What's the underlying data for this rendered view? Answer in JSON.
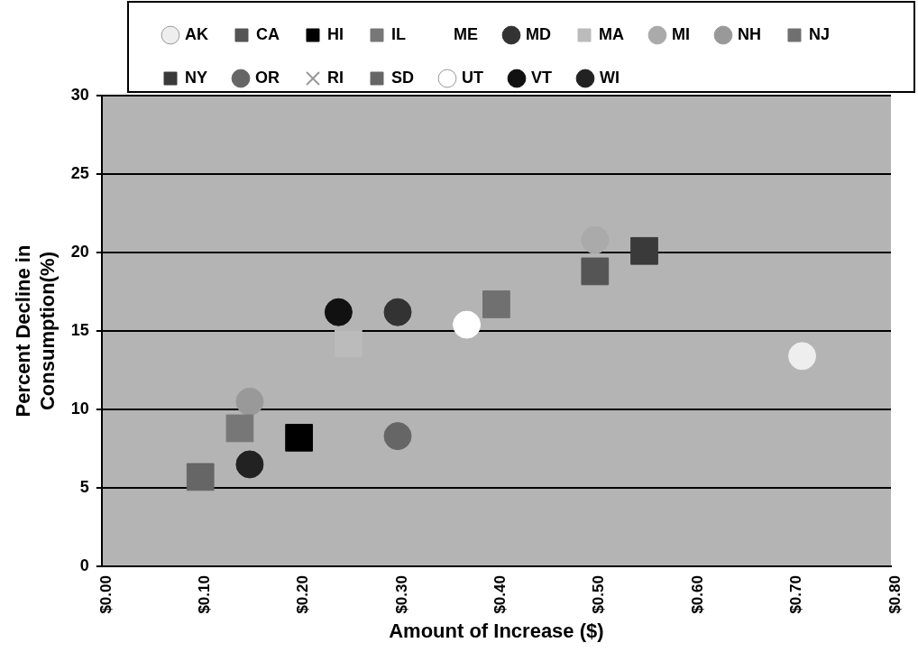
{
  "chart_data": {
    "type": "scatter",
    "xlabel": "Amount of Increase ($)",
    "ylabel": "Percent Decline in\nConsumption(%)",
    "xlim": [
      0,
      0.8
    ],
    "xticks": [
      {
        "value": 0,
        "label": "$0.00"
      },
      {
        "value": 0.1,
        "label": "$0.10"
      },
      {
        "value": 0.2,
        "label": "$0.20"
      },
      {
        "value": 0.3,
        "label": "$0.30"
      },
      {
        "value": 0.4,
        "label": "$0.40"
      },
      {
        "value": 0.5,
        "label": "$0.50"
      },
      {
        "value": 0.6,
        "label": "$0.60"
      },
      {
        "value": 0.7,
        "label": "$0.70"
      },
      {
        "value": 0.8,
        "label": "$0.80"
      }
    ],
    "ylim": [
      0,
      30
    ],
    "yticks": [
      0,
      5,
      10,
      15,
      20,
      25,
      30
    ],
    "grid": "y",
    "legend": "top",
    "marker": "circle",
    "series": [
      {
        "name": "AK",
        "color": "#eeeeee",
        "x": [
          0.71
        ],
        "values": [
          13.4
        ]
      },
      {
        "name": "CA",
        "color": "#555555",
        "marker": "square",
        "x": [
          0.5
        ],
        "values": [
          18.8
        ]
      },
      {
        "name": "HI",
        "color": "#000000",
        "marker": "square",
        "x": [
          0.2
        ],
        "values": [
          8.2
        ]
      },
      {
        "name": "IL",
        "color": "#777777",
        "marker": "square",
        "x": [
          0.14
        ],
        "values": [
          8.8
        ]
      },
      {
        "name": "ME",
        "marker": "none"
      },
      {
        "name": "MD",
        "color": "#333333",
        "x": [
          0.3
        ],
        "values": [
          16.2
        ]
      },
      {
        "name": "MA",
        "color": "#bbbbbb",
        "marker": "square",
        "x": [
          0.25
        ],
        "values": [
          14.2
        ]
      },
      {
        "name": "MI",
        "color": "#aaaaaa",
        "x": [
          0.5
        ],
        "values": [
          20.8
        ]
      },
      {
        "name": "NH",
        "color": "#999999",
        "x": [
          0.15
        ],
        "values": [
          10.5
        ]
      },
      {
        "name": "NJ",
        "color": "#707070",
        "marker": "square",
        "x": [
          0.4
        ],
        "values": [
          16.7
        ]
      },
      {
        "name": "NY",
        "color": "#3a3a3a",
        "marker": "square",
        "x": [
          0.55
        ],
        "values": [
          20.1
        ]
      },
      {
        "name": "OR",
        "color": "#666666",
        "x": [
          0.3
        ],
        "values": [
          8.3
        ]
      },
      {
        "name": "RI",
        "color": "#999999",
        "marker": "cross"
      },
      {
        "name": "SD",
        "color": "#666666",
        "marker": "square",
        "x": [
          0.1
        ],
        "values": [
          5.7
        ]
      },
      {
        "name": "UT",
        "color": "#ffffff",
        "x": [
          0.37
        ],
        "values": [
          15.4
        ]
      },
      {
        "name": "VT",
        "color": "#111111",
        "x": [
          0.24
        ],
        "values": [
          16.2
        ]
      },
      {
        "name": "WI",
        "color": "#222222",
        "x": [
          0.15
        ],
        "values": [
          6.5
        ]
      }
    ]
  }
}
